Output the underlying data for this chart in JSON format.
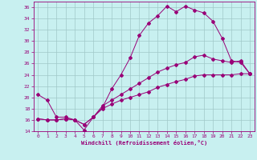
{
  "title": "",
  "xlabel": "Windchill (Refroidissement éolien,°C)",
  "bg_color": "#c8f0f0",
  "grid_color": "#a0c8c8",
  "line_color": "#990077",
  "xlim": [
    -0.5,
    23.5
  ],
  "ylim": [
    14,
    37
  ],
  "xticks": [
    0,
    1,
    2,
    3,
    4,
    5,
    6,
    7,
    8,
    9,
    10,
    11,
    12,
    13,
    14,
    15,
    16,
    17,
    18,
    19,
    20,
    21,
    22,
    23
  ],
  "yticks": [
    14,
    16,
    18,
    20,
    22,
    24,
    26,
    28,
    30,
    32,
    34,
    36
  ],
  "line1_x": [
    0,
    1,
    2,
    3,
    4,
    5,
    6,
    7,
    8,
    9,
    10,
    11,
    12,
    13,
    14,
    15,
    16,
    17,
    18,
    19,
    20,
    21,
    22,
    23
  ],
  "line1_y": [
    20.5,
    19.5,
    16.5,
    16.5,
    16.0,
    14.2,
    16.5,
    18.2,
    21.5,
    24.0,
    27.0,
    31.0,
    33.2,
    34.5,
    36.2,
    35.2,
    36.2,
    35.5,
    35.0,
    33.5,
    30.5,
    26.5,
    26.2,
    24.2
  ],
  "line2_x": [
    0,
    1,
    2,
    3,
    4,
    5,
    6,
    7,
    8,
    9,
    10,
    11,
    12,
    13,
    14,
    15,
    16,
    17,
    18,
    19,
    20,
    21,
    22,
    23
  ],
  "line2_y": [
    16.2,
    16.0,
    16.0,
    16.2,
    16.0,
    15.2,
    16.5,
    18.5,
    19.5,
    20.5,
    21.5,
    22.5,
    23.5,
    24.5,
    25.2,
    25.8,
    26.2,
    27.2,
    27.5,
    26.8,
    26.5,
    26.2,
    26.5,
    24.2
  ],
  "line3_x": [
    0,
    1,
    2,
    3,
    4,
    5,
    6,
    7,
    8,
    9,
    10,
    11,
    12,
    13,
    14,
    15,
    16,
    17,
    18,
    19,
    20,
    21,
    22,
    23
  ],
  "line3_y": [
    16.2,
    16.0,
    16.0,
    16.2,
    16.0,
    15.2,
    16.5,
    18.0,
    18.8,
    19.5,
    20.0,
    20.5,
    21.0,
    21.8,
    22.3,
    22.8,
    23.2,
    23.8,
    24.0,
    24.0,
    24.0,
    24.0,
    24.2,
    24.2
  ]
}
